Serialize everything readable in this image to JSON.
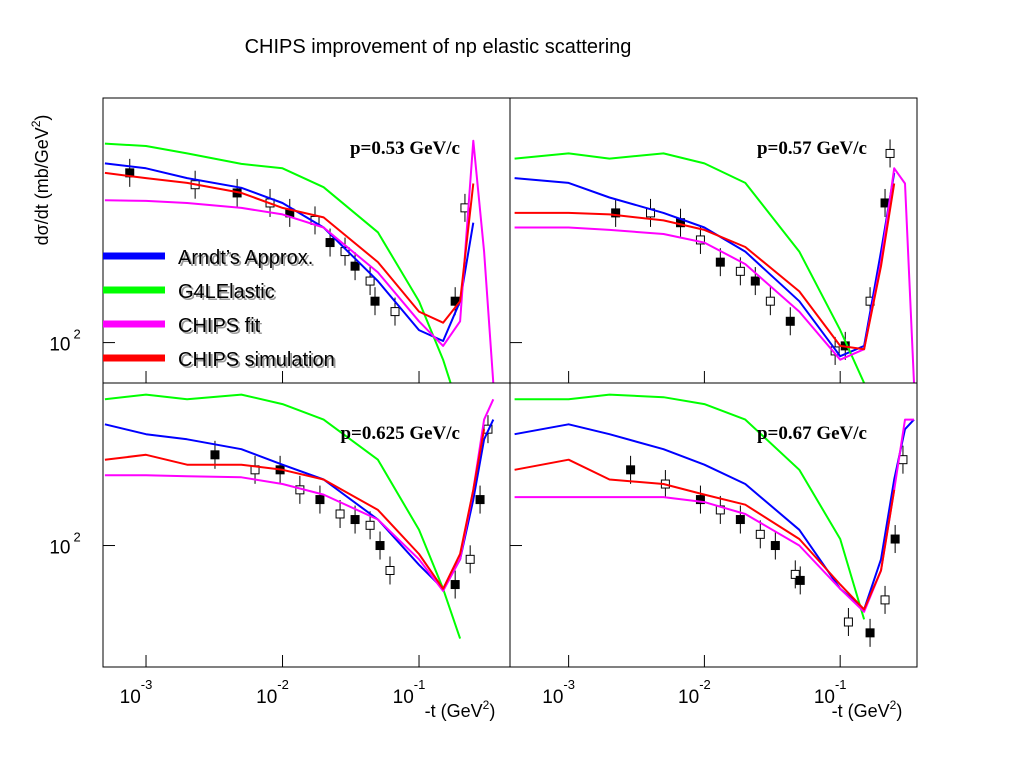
{
  "title": "CHIPS improvement of np elastic scattering",
  "y_label": {
    "text": "dσ/dt (mb/GeV",
    "sup": "2",
    "end": ")"
  },
  "x_label": {
    "text": "-t (GeV",
    "sup": "2",
    "end": ")"
  },
  "chart_data": [
    {
      "type": "line",
      "annotation": "p=0.53 GeV/c",
      "log_x": true,
      "log_y": true,
      "xlim": [
        0.000484,
        0.464
      ],
      "ylim": [
        78,
        450
      ],
      "xticks": [
        0.001,
        0.01,
        0.1
      ],
      "yticks": [
        {
          "value": 100,
          "label": "10",
          "exp": "2"
        }
      ],
      "x": [
        0.0005,
        0.001,
        0.002,
        0.005,
        0.01,
        0.02,
        0.05,
        0.1,
        0.15,
        0.2,
        0.25,
        0.3,
        0.35
      ],
      "series": [
        {
          "name": "Arndt’s Approx.",
          "color": "#0000ff",
          "values": [
            301,
            292,
            275,
            259,
            236,
            203,
            146,
            108,
            101,
            129,
            209,
            null,
            null
          ]
        },
        {
          "name": "G4LElastic",
          "color": "#00ff00",
          "values": [
            340,
            335,
            320,
            300,
            292,
            260,
            197,
            129,
            90,
            65,
            null,
            null,
            null
          ]
        },
        {
          "name": "CHIPS fit",
          "color": "#ff00ff",
          "values": [
            240,
            239,
            236,
            229,
            220,
            203,
            154,
            114,
            98,
            114,
            346,
            175,
            78
          ]
        },
        {
          "name": "CHIPS simulation",
          "color": "#ff0000",
          "values": [
            284,
            275,
            267,
            251,
            229,
            216,
            164,
            121,
            113,
            129,
            266,
            null,
            null
          ]
        }
      ],
      "points": {
        "color": "#000000",
        "x": [
          0.00076,
          0.00229,
          0.00465,
          0.0081,
          0.0113,
          0.0173,
          0.0223,
          0.0287,
          0.034,
          0.0438,
          0.0476,
          0.0667,
          0.184,
          0.217
        ],
        "values": [
          284,
          264,
          251,
          236,
          222,
          212,
          185,
          175,
          160,
          146,
          129,
          121,
          129,
          229
        ]
      }
    },
    {
      "type": "line",
      "annotation": "p=0.57 GeV/c",
      "log_x": true,
      "log_y": true,
      "xlim": [
        0.00037,
        0.368
      ],
      "ylim": [
        78,
        450
      ],
      "xticks": [
        0.001,
        0.01,
        0.1
      ],
      "yticks": [
        100
      ],
      "x": [
        0.0004,
        0.001,
        0.002,
        0.005,
        0.01,
        0.02,
        0.05,
        0.1,
        0.15,
        0.2,
        0.25,
        0.3,
        0.35
      ],
      "series": [
        {
          "color": "#0000ff",
          "values": [
            275,
            267,
            244,
            222,
            203,
            175,
            129,
            92,
            98,
            175,
            284,
            null,
            null
          ]
        },
        {
          "color": "#00ff00",
          "values": [
            310,
            320,
            310,
            320,
            301,
            267,
            175,
            108,
            78,
            null,
            null,
            null,
            null
          ]
        },
        {
          "color": "#ff00ff",
          "values": [
            203,
            203,
            200,
            195,
            185,
            162,
            121,
            90,
            96,
            164,
            292,
            266,
            78
          ]
        },
        {
          "color": "#ff0000",
          "values": [
            222,
            222,
            220,
            212,
            200,
            180,
            137,
            98,
            96,
            160,
            266,
            null,
            null
          ]
        }
      ],
      "points": {
        "color": "#000000",
        "x": [
          0.00222,
          0.00401,
          0.00667,
          0.00935,
          0.0131,
          0.0184,
          0.0237,
          0.0306,
          0.0429,
          0.0918,
          0.109,
          0.166,
          0.214,
          0.233
        ],
        "values": [
          222,
          222,
          209,
          188,
          164,
          155,
          146,
          129,
          114,
          95,
          98,
          129,
          236,
          320
        ]
      }
    },
    {
      "type": "line",
      "annotation": "p=0.625 GeV/c",
      "log_x": true,
      "log_y": true,
      "xlim": [
        0.000484,
        0.464
      ],
      "ylim": [
        48,
        267
      ],
      "xticks": [
        {
          "value": 0.001,
          "label": "10",
          "exp": "-3"
        },
        {
          "value": 0.01,
          "label": "10",
          "exp": "-2"
        },
        {
          "value": 0.1,
          "label": "10",
          "exp": "-1"
        }
      ],
      "yticks": [
        {
          "value": 100,
          "label": "10",
          "exp": "2"
        }
      ],
      "x": [
        0.0005,
        0.001,
        0.002,
        0.005,
        0.01,
        0.02,
        0.05,
        0.1,
        0.15,
        0.2,
        0.25,
        0.3,
        0.35
      ],
      "series": [
        {
          "color": "#0000ff",
          "values": [
            208,
            196,
            190,
            179,
            163,
            149,
            117,
            89,
            77,
            92,
            132,
            190,
            214
          ]
        },
        {
          "color": "#00ff00",
          "values": [
            242,
            249,
            242,
            249,
            235,
            214,
            168,
            110,
            77,
            57,
            null,
            null,
            null
          ]
        },
        {
          "color": "#ff00ff",
          "values": [
            153,
            153,
            152,
            151,
            145,
            136,
            117,
            92,
            76,
            92,
            140,
            214,
            242
          ]
        },
        {
          "color": "#ff0000",
          "values": [
            168,
            173,
            163,
            163,
            158,
            149,
            124,
            95,
            77,
            95,
            140,
            202,
            null
          ]
        }
      ],
      "points": {
        "color": "#000000",
        "x": [
          0.0032,
          0.00629,
          0.0096,
          0.0134,
          0.0188,
          0.0264,
          0.034,
          0.0438,
          0.0518,
          0.0613,
          0.184,
          0.237,
          0.28,
          0.32
        ],
        "values": [
          173,
          158,
          158,
          140,
          132,
          121,
          117,
          113,
          100,
          86,
          79,
          92,
          132,
          202
        ]
      }
    },
    {
      "type": "line",
      "annotation": "p=0.67 GeV/c",
      "log_x": true,
      "log_y": true,
      "xlim": [
        0.00037,
        0.368
      ],
      "ylim": [
        48,
        267
      ],
      "xticks": [
        {
          "value": 0.001,
          "label": "10",
          "exp": "-3"
        },
        {
          "value": 0.01,
          "label": "10",
          "exp": "-2"
        },
        {
          "value": 0.1,
          "label": "10",
          "exp": "-1"
        }
      ],
      "yticks": [
        100
      ],
      "x": [
        0.0004,
        0.001,
        0.002,
        0.005,
        0.01,
        0.02,
        0.05,
        0.1,
        0.15,
        0.2,
        0.25,
        0.3,
        0.35
      ],
      "series": [
        {
          "color": "#0000ff",
          "values": [
            196,
            208,
            196,
            179,
            163,
            145,
            110,
            77,
            68,
            92,
            149,
            202,
            214
          ]
        },
        {
          "color": "#00ff00",
          "values": [
            242,
            242,
            249,
            245,
            235,
            214,
            158,
            104,
            64,
            null,
            null,
            null,
            null
          ]
        },
        {
          "color": "#ff00ff",
          "values": [
            134,
            134,
            134,
            134,
            130,
            121,
            100,
            77,
            67,
            86,
            140,
            214,
            214
          ]
        },
        {
          "color": "#ff0000",
          "values": [
            158,
            168,
            149,
            145,
            136,
            128,
            104,
            79,
            68,
            86,
            140,
            null,
            null
          ]
        }
      ],
      "points": {
        "color": "#000000",
        "x": [
          0.00286,
          0.00516,
          0.00935,
          0.0131,
          0.0184,
          0.0258,
          0.0333,
          0.0467,
          0.0508,
          0.115,
          0.166,
          0.214,
          0.254,
          0.29
        ],
        "values": [
          158,
          145,
          132,
          124,
          117,
          107,
          100,
          84,
          81,
          63,
          59,
          72,
          104,
          168
        ]
      }
    }
  ]
}
